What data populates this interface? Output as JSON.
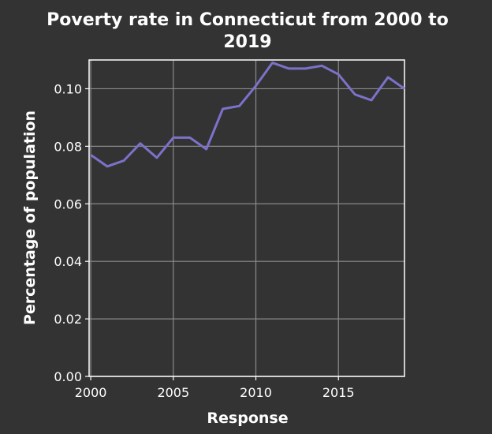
{
  "chart_data": {
    "type": "line",
    "title_lines": [
      "Poverty rate in Connecticut from 2000 to",
      "2019"
    ],
    "xlabel": "Response",
    "ylabel": "Percentage of population",
    "xlim": [
      1999.9,
      2019
    ],
    "ylim": [
      0,
      0.11
    ],
    "x_ticks": [
      2000,
      2005,
      2010,
      2015
    ],
    "x_tick_labels": [
      "2000",
      "2005",
      "2010",
      "2015"
    ],
    "y_ticks": [
      0,
      0.02,
      0.04,
      0.06,
      0.08,
      0.1
    ],
    "y_tick_labels": [
      "0.00",
      "0.02",
      "0.04",
      "0.06",
      "0.08",
      "0.10"
    ],
    "grid": true,
    "series": [
      {
        "color": "#7b72c9",
        "x": [
          2000,
          2001,
          2002,
          2003,
          2004,
          2005,
          2006,
          2007,
          2008,
          2009,
          2010,
          2011,
          2012,
          2013,
          2014,
          2015,
          2016,
          2017,
          2018,
          2019
        ],
        "y": [
          0.077,
          0.073,
          0.075,
          0.081,
          0.076,
          0.083,
          0.083,
          0.079,
          0.093,
          0.094,
          0.101,
          0.109,
          0.107,
          0.107,
          0.108,
          0.105,
          0.098,
          0.096,
          0.104,
          0.1
        ]
      }
    ]
  }
}
